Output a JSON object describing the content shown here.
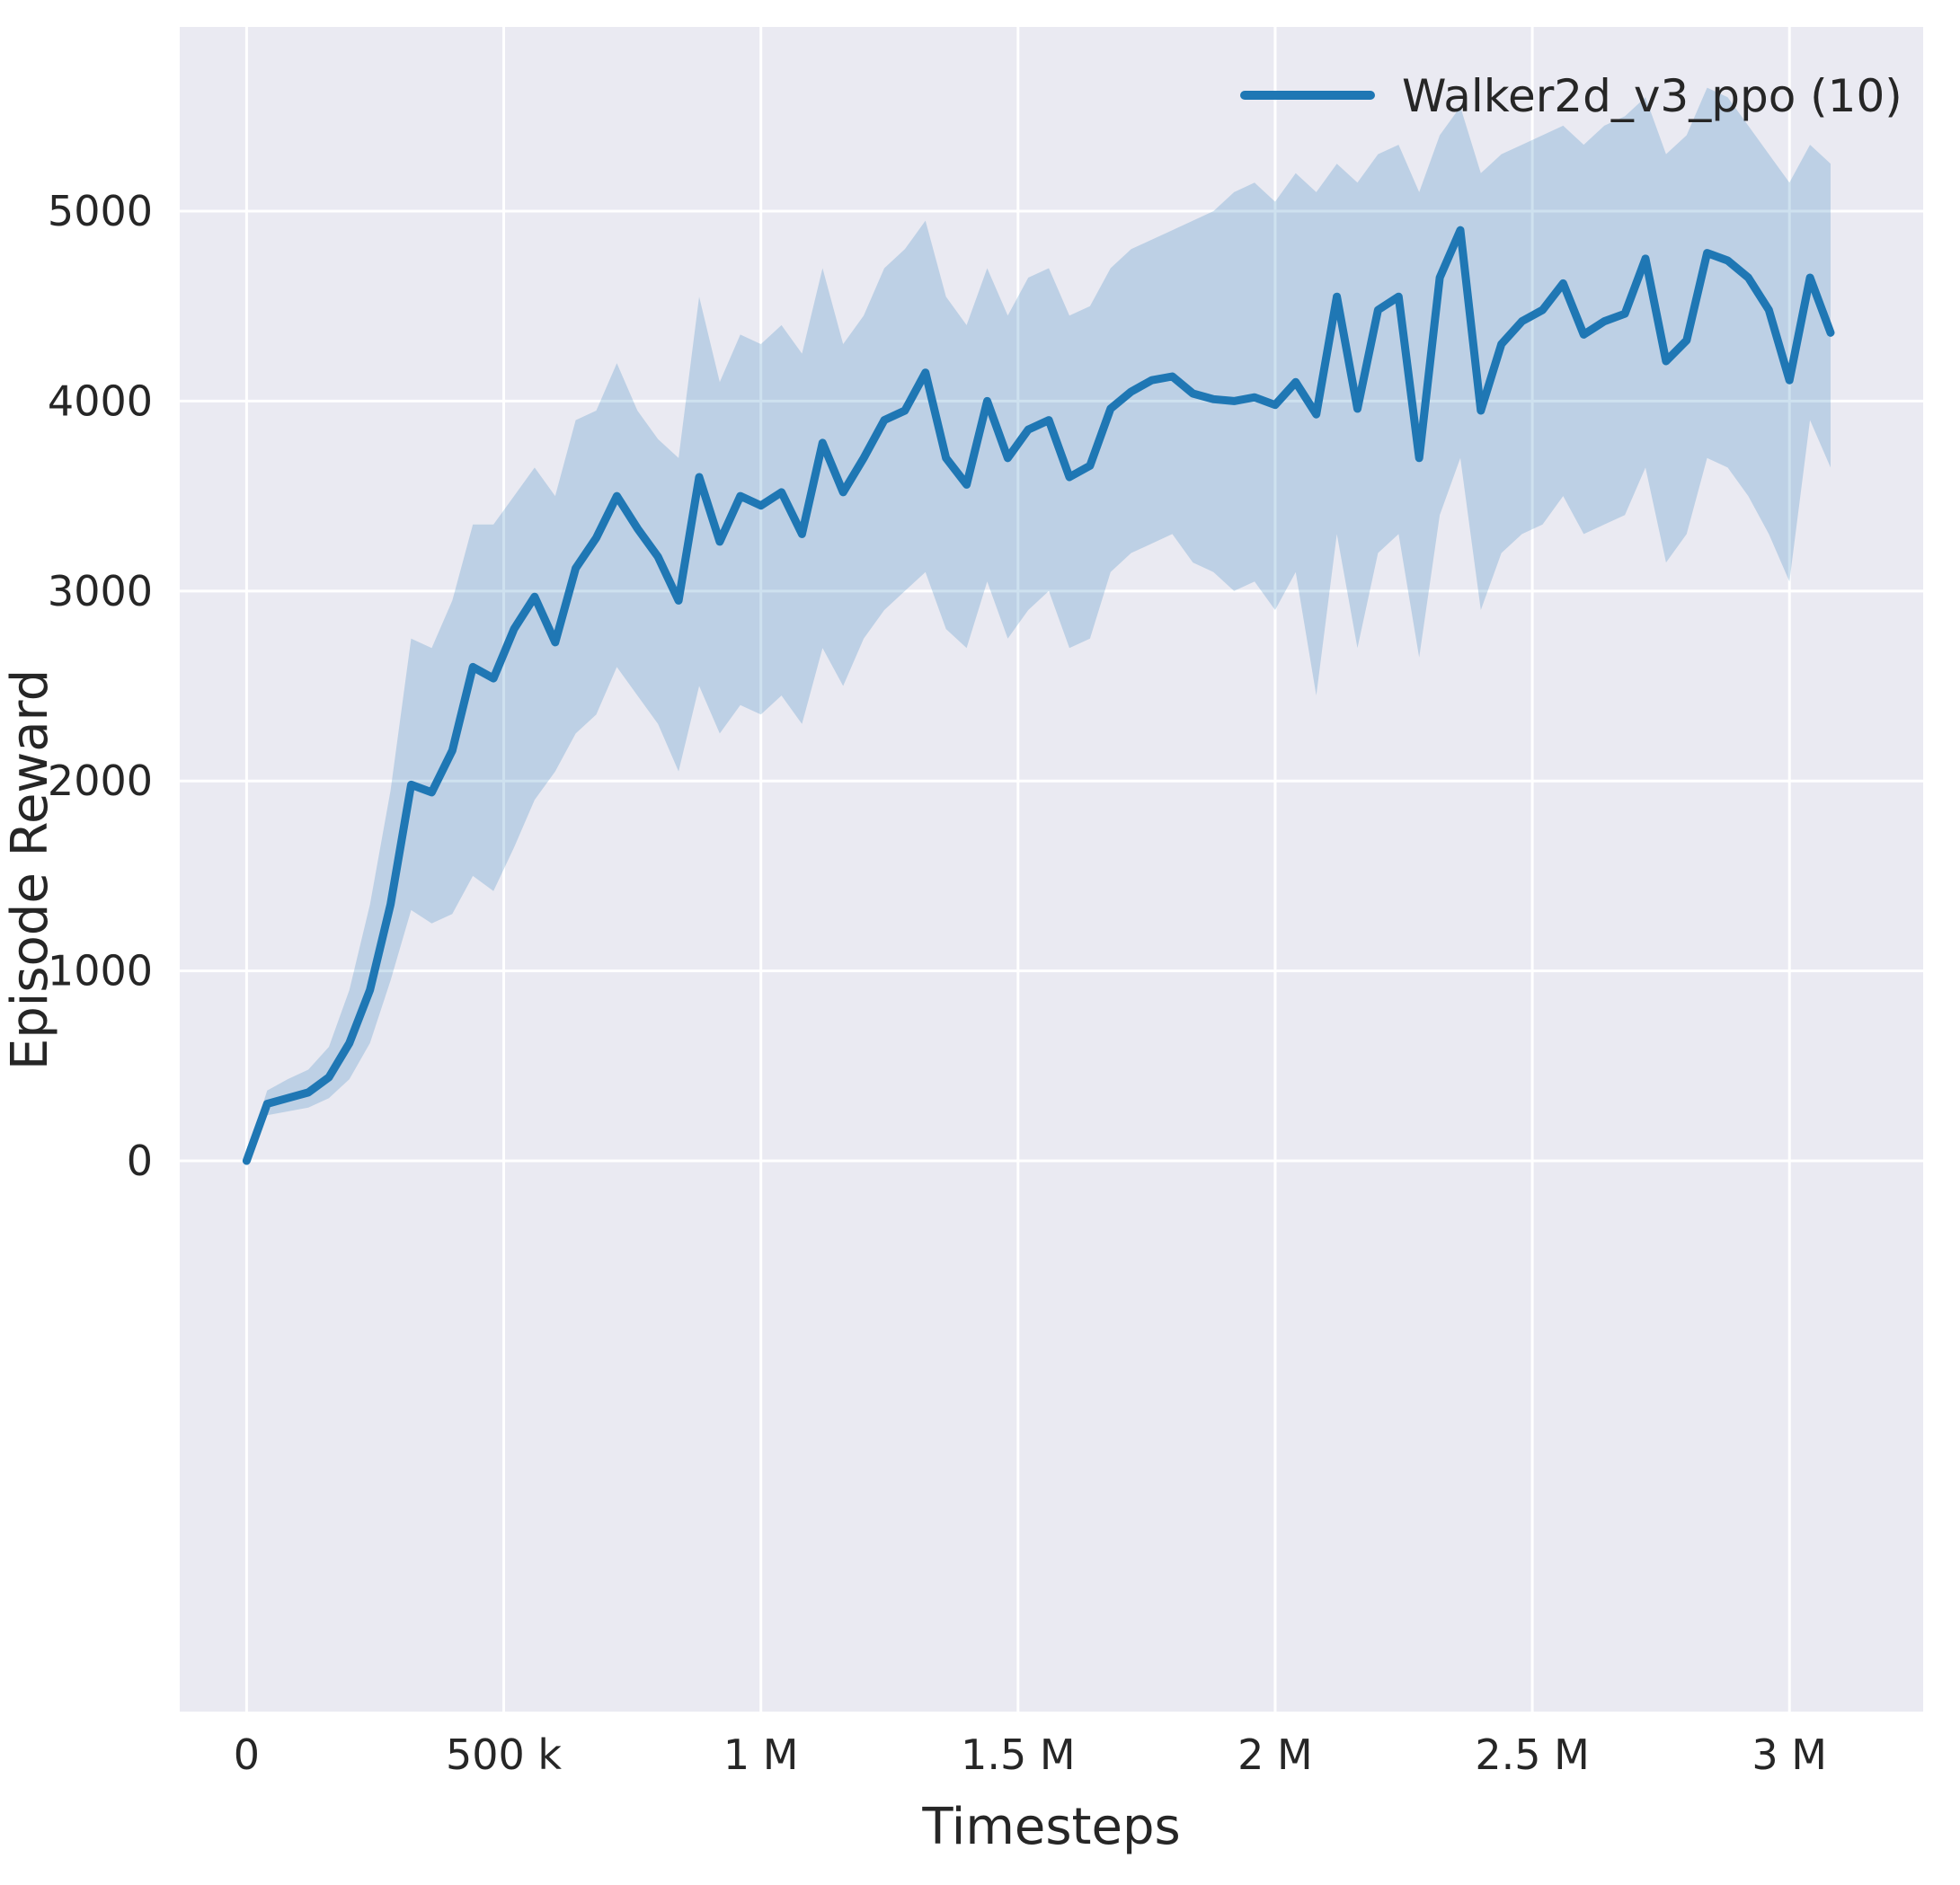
{
  "figure": {
    "background": "#ffffff",
    "axes_background": "#eaeaf2",
    "grid_color": "#ffffff",
    "text_color": "#262626"
  },
  "legend": {
    "label": "Walker2d_v3_ppo (10)",
    "line_color": "#1f77b4",
    "position": "upper right"
  },
  "chart_data": {
    "type": "line",
    "title": "",
    "xlabel": "Timesteps",
    "ylabel": "Episode Reward",
    "grid": true,
    "legend_position": "upper right",
    "xlim": [
      -130000,
      3260000
    ],
    "ylim": [
      -2900,
      5970
    ],
    "x_ticks": [
      0,
      500000,
      1000000,
      1500000,
      2000000,
      2500000,
      3000000
    ],
    "x_tick_labels": [
      "0",
      "500 k",
      "1 M",
      "1.5 M",
      "2 M",
      "2.5 M",
      "3 M"
    ],
    "y_ticks": [
      0,
      1000,
      2000,
      3000,
      4000,
      5000
    ],
    "y_tick_labels": [
      "0",
      "1000",
      "2000",
      "3000",
      "4000",
      "5000"
    ],
    "series": [
      {
        "name": "Walker2d_v3_ppo (10)",
        "color": "#1f77b4",
        "band_opacity": 0.22,
        "x": [
          0,
          40000,
          80000,
          120000,
          160000,
          200000,
          240000,
          280000,
          320000,
          360000,
          400000,
          440000,
          480000,
          520000,
          560000,
          600000,
          640000,
          680000,
          720000,
          760000,
          800000,
          840000,
          880000,
          920000,
          960000,
          1000000,
          1040000,
          1080000,
          1120000,
          1160000,
          1200000,
          1240000,
          1280000,
          1320000,
          1360000,
          1400000,
          1440000,
          1480000,
          1520000,
          1560000,
          1600000,
          1640000,
          1680000,
          1720000,
          1760000,
          1800000,
          1840000,
          1880000,
          1920000,
          1960000,
          2000000,
          2040000,
          2080000,
          2120000,
          2160000,
          2200000,
          2240000,
          2280000,
          2320000,
          2360000,
          2400000,
          2440000,
          2480000,
          2520000,
          2560000,
          2600000,
          2640000,
          2680000,
          2720000,
          2760000,
          2800000,
          2840000,
          2880000,
          2920000,
          2960000,
          3000000,
          3040000,
          3080000
        ],
        "mean": [
          0,
          300,
          330,
          360,
          440,
          620,
          900,
          1350,
          1980,
          1940,
          2160,
          2600,
          2540,
          2800,
          2970,
          2730,
          3120,
          3280,
          3500,
          3330,
          3180,
          2950,
          3600,
          3260,
          3500,
          3450,
          3520,
          3300,
          3780,
          3520,
          3700,
          3900,
          3950,
          4150,
          3700,
          3560,
          4000,
          3700,
          3850,
          3900,
          3600,
          3660,
          3960,
          4050,
          4110,
          4130,
          4040,
          4010,
          4000,
          4020,
          3980,
          4100,
          3930,
          4550,
          3960,
          4480,
          4550,
          3700,
          4650,
          4900,
          3950,
          4300,
          4420,
          4480,
          4620,
          4350,
          4420,
          4460,
          4750,
          4210,
          4320,
          4780,
          4740,
          4650,
          4480,
          4110,
          4650,
          4360
        ],
        "band_lower": [
          -20,
          240,
          260,
          280,
          330,
          430,
          620,
          950,
          1320,
          1250,
          1300,
          1500,
          1420,
          1650,
          1900,
          2050,
          2250,
          2350,
          2600,
          2450,
          2300,
          2050,
          2500,
          2250,
          2400,
          2350,
          2450,
          2300,
          2700,
          2500,
          2750,
          2900,
          3000,
          3100,
          2800,
          2700,
          3050,
          2750,
          2900,
          3000,
          2700,
          2750,
          3100,
          3200,
          3250,
          3300,
          3150,
          3100,
          3000,
          3050,
          2900,
          3100,
          2450,
          3300,
          2700,
          3200,
          3300,
          2650,
          3400,
          3700,
          2900,
          3200,
          3300,
          3350,
          3500,
          3300,
          3350,
          3400,
          3650,
          3150,
          3300,
          3700,
          3650,
          3500,
          3300,
          3050,
          3900,
          3650
        ],
        "band_upper": [
          30,
          370,
          430,
          480,
          600,
          900,
          1350,
          1950,
          2750,
          2700,
          2950,
          3350,
          3350,
          3500,
          3650,
          3500,
          3900,
          3950,
          4200,
          3950,
          3800,
          3700,
          4550,
          4100,
          4350,
          4300,
          4400,
          4250,
          4700,
          4300,
          4450,
          4700,
          4800,
          4950,
          4550,
          4400,
          4700,
          4450,
          4650,
          4700,
          4450,
          4500,
          4700,
          4800,
          4850,
          4900,
          4950,
          5000,
          5100,
          5150,
          5050,
          5200,
          5100,
          5250,
          5150,
          5300,
          5350,
          5100,
          5400,
          5550,
          5200,
          5300,
          5350,
          5400,
          5450,
          5350,
          5450,
          5500,
          5600,
          5300,
          5400,
          5650,
          5600,
          5450,
          5300,
          5150,
          5350,
          5250
        ]
      }
    ]
  }
}
